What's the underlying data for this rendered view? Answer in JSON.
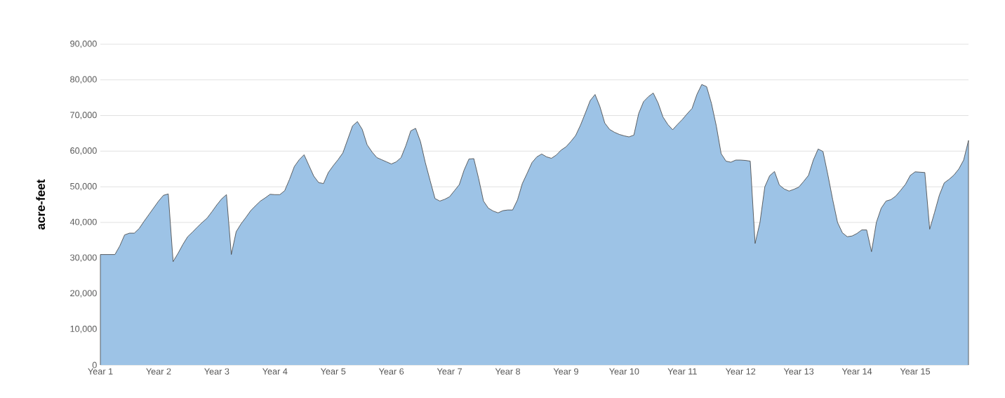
{
  "chart_data": {
    "type": "area",
    "ylabel": "acre-feet",
    "color": "#9dc3e6",
    "grid": "y",
    "categories": [
      "Year 1",
      null,
      null,
      null,
      null,
      null,
      null,
      null,
      null,
      null,
      null,
      null,
      "Year 2",
      null,
      null,
      null,
      null,
      null,
      null,
      null,
      null,
      null,
      null,
      null,
      "Year 3",
      null,
      null,
      null,
      null,
      null,
      null,
      null,
      null,
      null,
      null,
      null,
      "Year 4",
      null,
      null,
      null,
      null,
      null,
      null,
      null,
      null,
      null,
      null,
      null,
      "Year 5",
      null,
      null,
      null,
      null,
      null,
      null,
      null,
      null,
      null,
      null,
      null,
      "Year 6",
      null,
      null,
      null,
      null,
      null,
      null,
      null,
      null,
      null,
      null,
      null,
      "Year 7",
      null,
      null,
      null,
      null,
      null,
      null,
      null,
      null,
      null,
      null,
      null,
      "Year 8",
      null,
      null,
      null,
      null,
      null,
      null,
      null,
      null,
      null,
      null,
      null,
      "Year 9",
      null,
      null,
      null,
      null,
      null,
      null,
      null,
      null,
      null,
      null,
      null,
      "Year 10",
      null,
      null,
      null,
      null,
      null,
      null,
      null,
      null,
      null,
      null,
      null,
      "Year 11",
      null,
      null,
      null,
      null,
      null,
      null,
      null,
      null,
      null,
      null,
      null,
      "Year 12",
      null,
      null,
      null,
      null,
      null,
      null,
      null,
      null,
      null,
      null,
      null,
      "Year 13",
      null,
      null,
      null,
      null,
      null,
      null,
      null,
      null,
      null,
      null,
      null,
      "Year 14",
      null,
      null,
      null,
      null,
      null,
      null,
      null,
      null,
      null,
      null,
      null,
      "Year 15",
      null,
      null,
      null,
      null,
      null,
      null,
      null,
      null,
      null,
      null,
      null
    ],
    "values": [
      31000,
      31000,
      31000,
      31000,
      33400,
      36500,
      37000,
      37000,
      38300,
      40300,
      42200,
      44100,
      46000,
      47600,
      48000,
      29000,
      31300,
      33800,
      36000,
      37300,
      38700,
      40000,
      41200,
      43000,
      44900,
      46600,
      47800,
      31000,
      37400,
      39600,
      41400,
      43300,
      44700,
      46000,
      46900,
      47900,
      47800,
      47800,
      48900,
      52100,
      55700,
      57600,
      59000,
      56000,
      53000,
      51200,
      50900,
      54000,
      55900,
      57600,
      59500,
      63300,
      67100,
      68300,
      66100,
      61800,
      59800,
      58200,
      57600,
      57000,
      56400,
      57000,
      58200,
      61600,
      65700,
      66400,
      62700,
      56800,
      51700,
      46700,
      46000,
      46500,
      47200,
      48900,
      50600,
      54700,
      57800,
      57900,
      52300,
      46000,
      44000,
      43200,
      42700,
      43300,
      43500,
      43500,
      46300,
      50900,
      53800,
      56800,
      58400,
      59200,
      58400,
      58000,
      58900,
      60300,
      61200,
      62700,
      64400,
      67300,
      70700,
      74200,
      75900,
      72500,
      67900,
      66100,
      65300,
      64700,
      64300,
      64000,
      64500,
      70600,
      73900,
      75300,
      76300,
      73500,
      69600,
      67500,
      66000,
      67500,
      68900,
      70500,
      72000,
      75900,
      78700,
      78100,
      73400,
      67100,
      59300,
      57200,
      56900,
      57500,
      57500,
      57400,
      57200,
      34100,
      40000,
      50000,
      53100,
      54300,
      50500,
      49400,
      48800,
      49300,
      49900,
      51500,
      53200,
      57500,
      60600,
      59900,
      53400,
      46400,
      40000,
      37100,
      36000,
      36200,
      36900,
      37900,
      37900,
      31800,
      40000,
      44000,
      46000,
      46400,
      47400,
      49000,
      50700,
      53200,
      54200,
      54100,
      54000,
      38100,
      42800,
      47700,
      51100,
      52100,
      53300,
      55000,
      57500,
      63000
    ],
    "ylim": [
      0,
      90000
    ],
    "yticks": [
      0,
      {
        "value": 10000,
        "label": "10,000"
      },
      {
        "value": 20000,
        "label": "20,000"
      },
      {
        "value": 30000,
        "label": "30,000"
      },
      {
        "value": 40000,
        "label": "40,000"
      },
      {
        "value": 50000,
        "label": "50,000"
      },
      {
        "value": 60000,
        "label": "60,000"
      },
      {
        "value": 70000,
        "label": "70,000"
      },
      {
        "value": 80000,
        "label": "80,000"
      },
      {
        "value": 90000,
        "label": "90,000"
      }
    ]
  }
}
